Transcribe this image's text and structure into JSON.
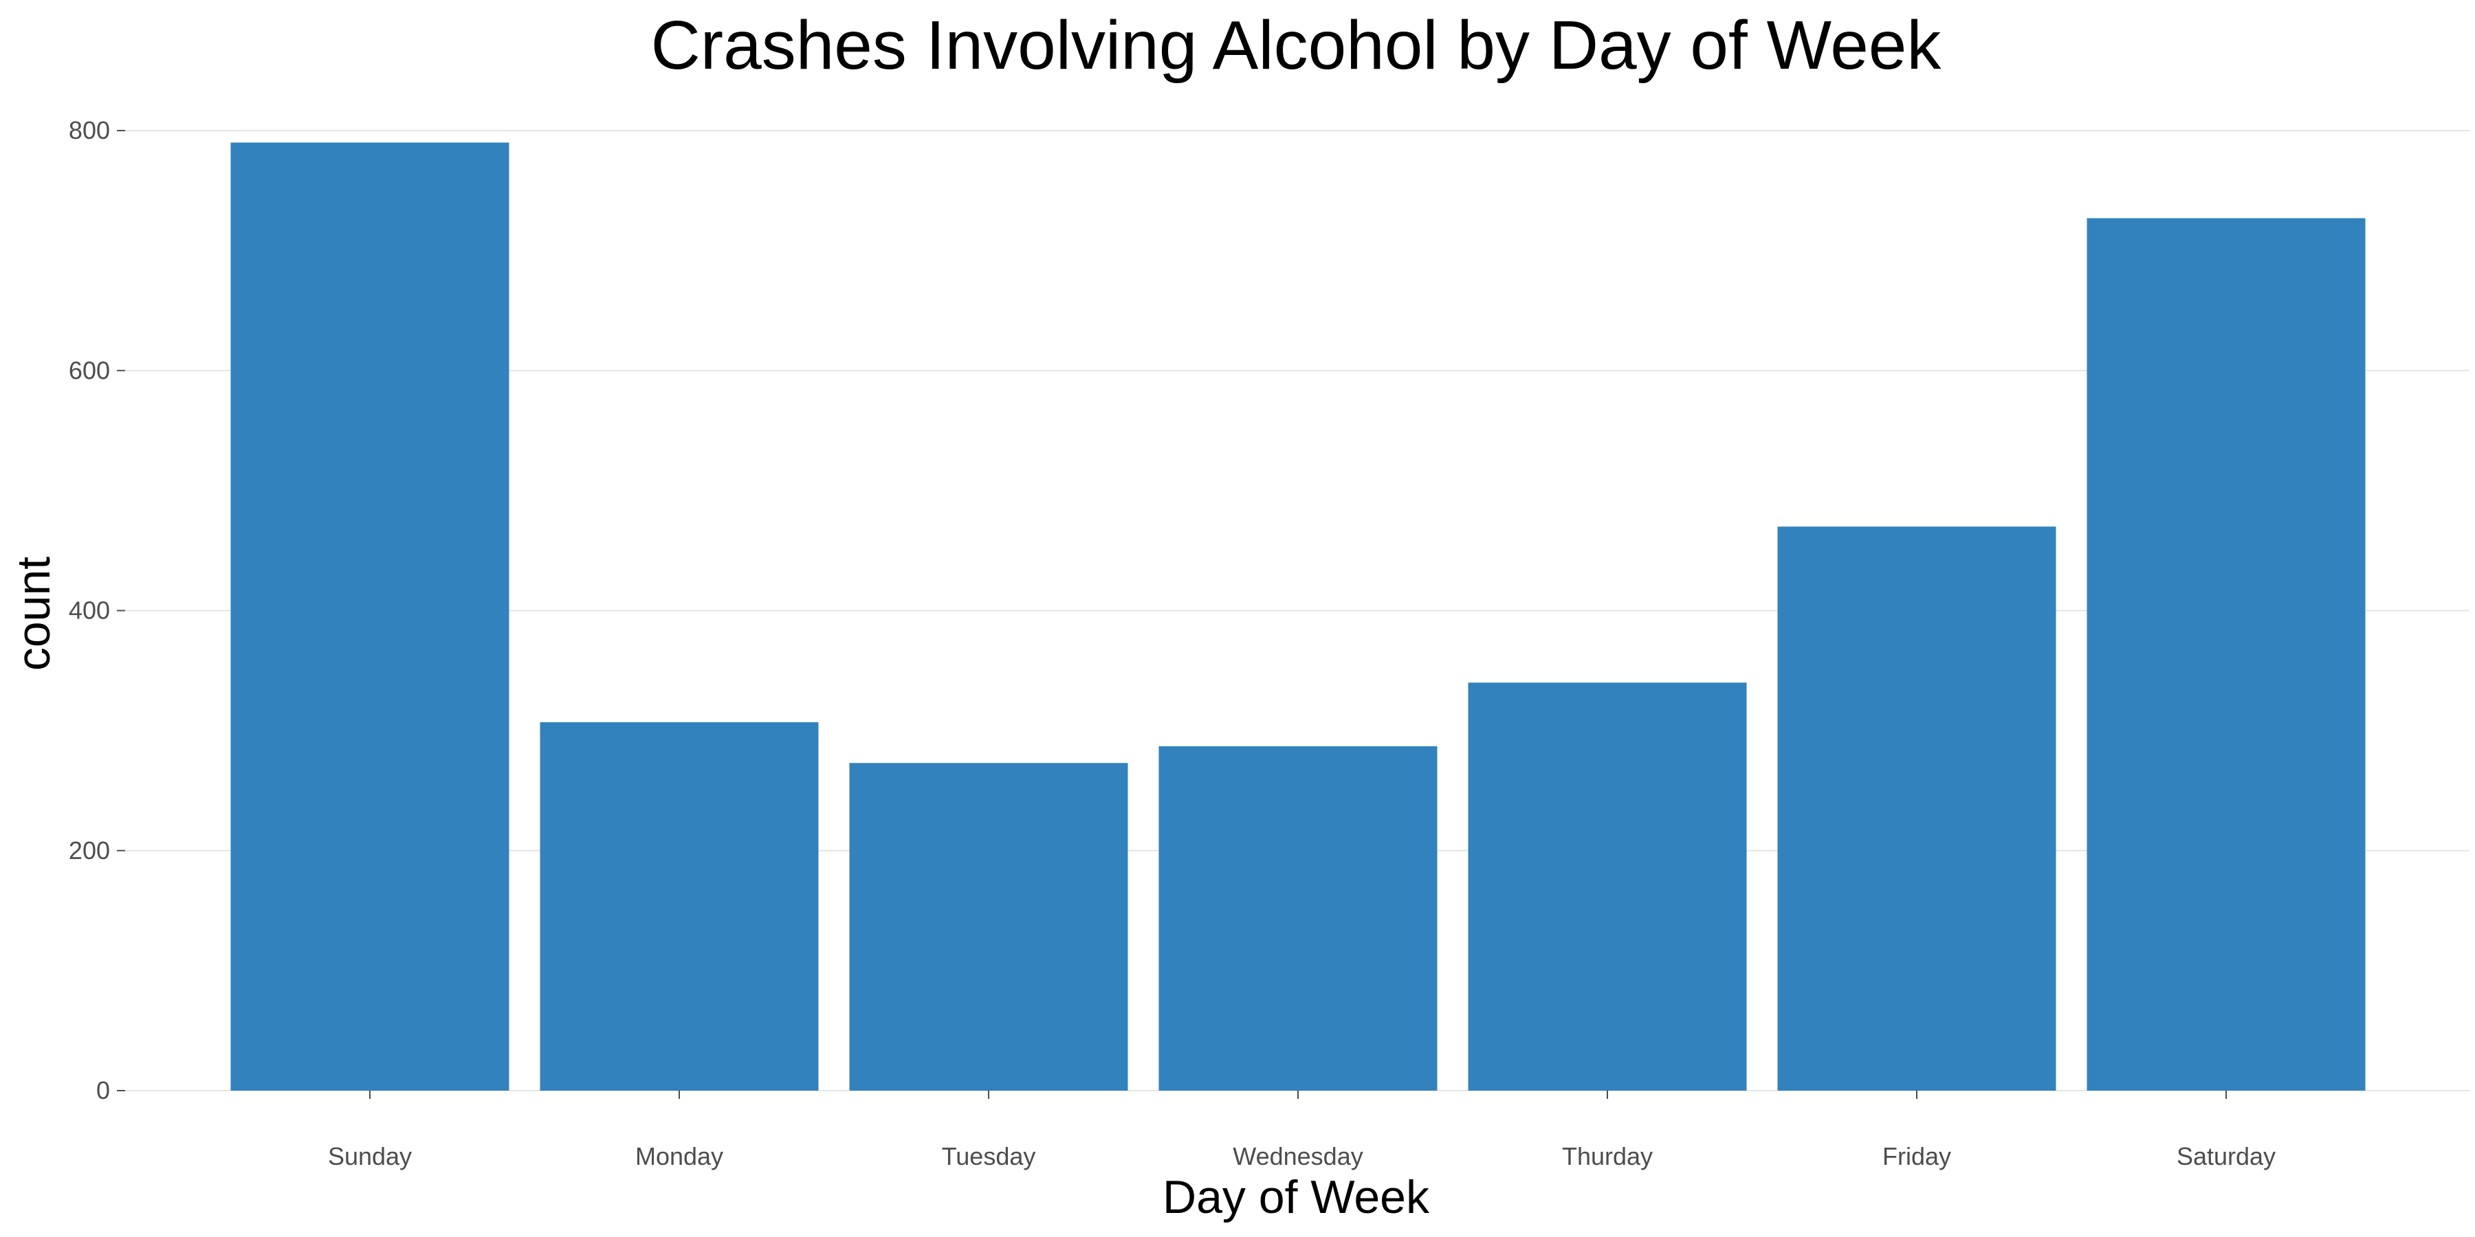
{
  "chart_data": {
    "type": "bar",
    "title": "Crashes Involving Alcohol by Day of Week",
    "xlabel": "Day of Week",
    "ylabel": "count",
    "categories": [
      "Sunday",
      "Monday",
      "Tuesday",
      "Wednesday",
      "Thurday",
      "Friday",
      "Saturday"
    ],
    "values": [
      790,
      307,
      273,
      287,
      340,
      470,
      727
    ],
    "ylim": [
      0,
      800
    ],
    "yticks": [
      0,
      200,
      400,
      600,
      800
    ],
    "bar_color": "#3282bd",
    "grid": true,
    "legend": "none"
  }
}
